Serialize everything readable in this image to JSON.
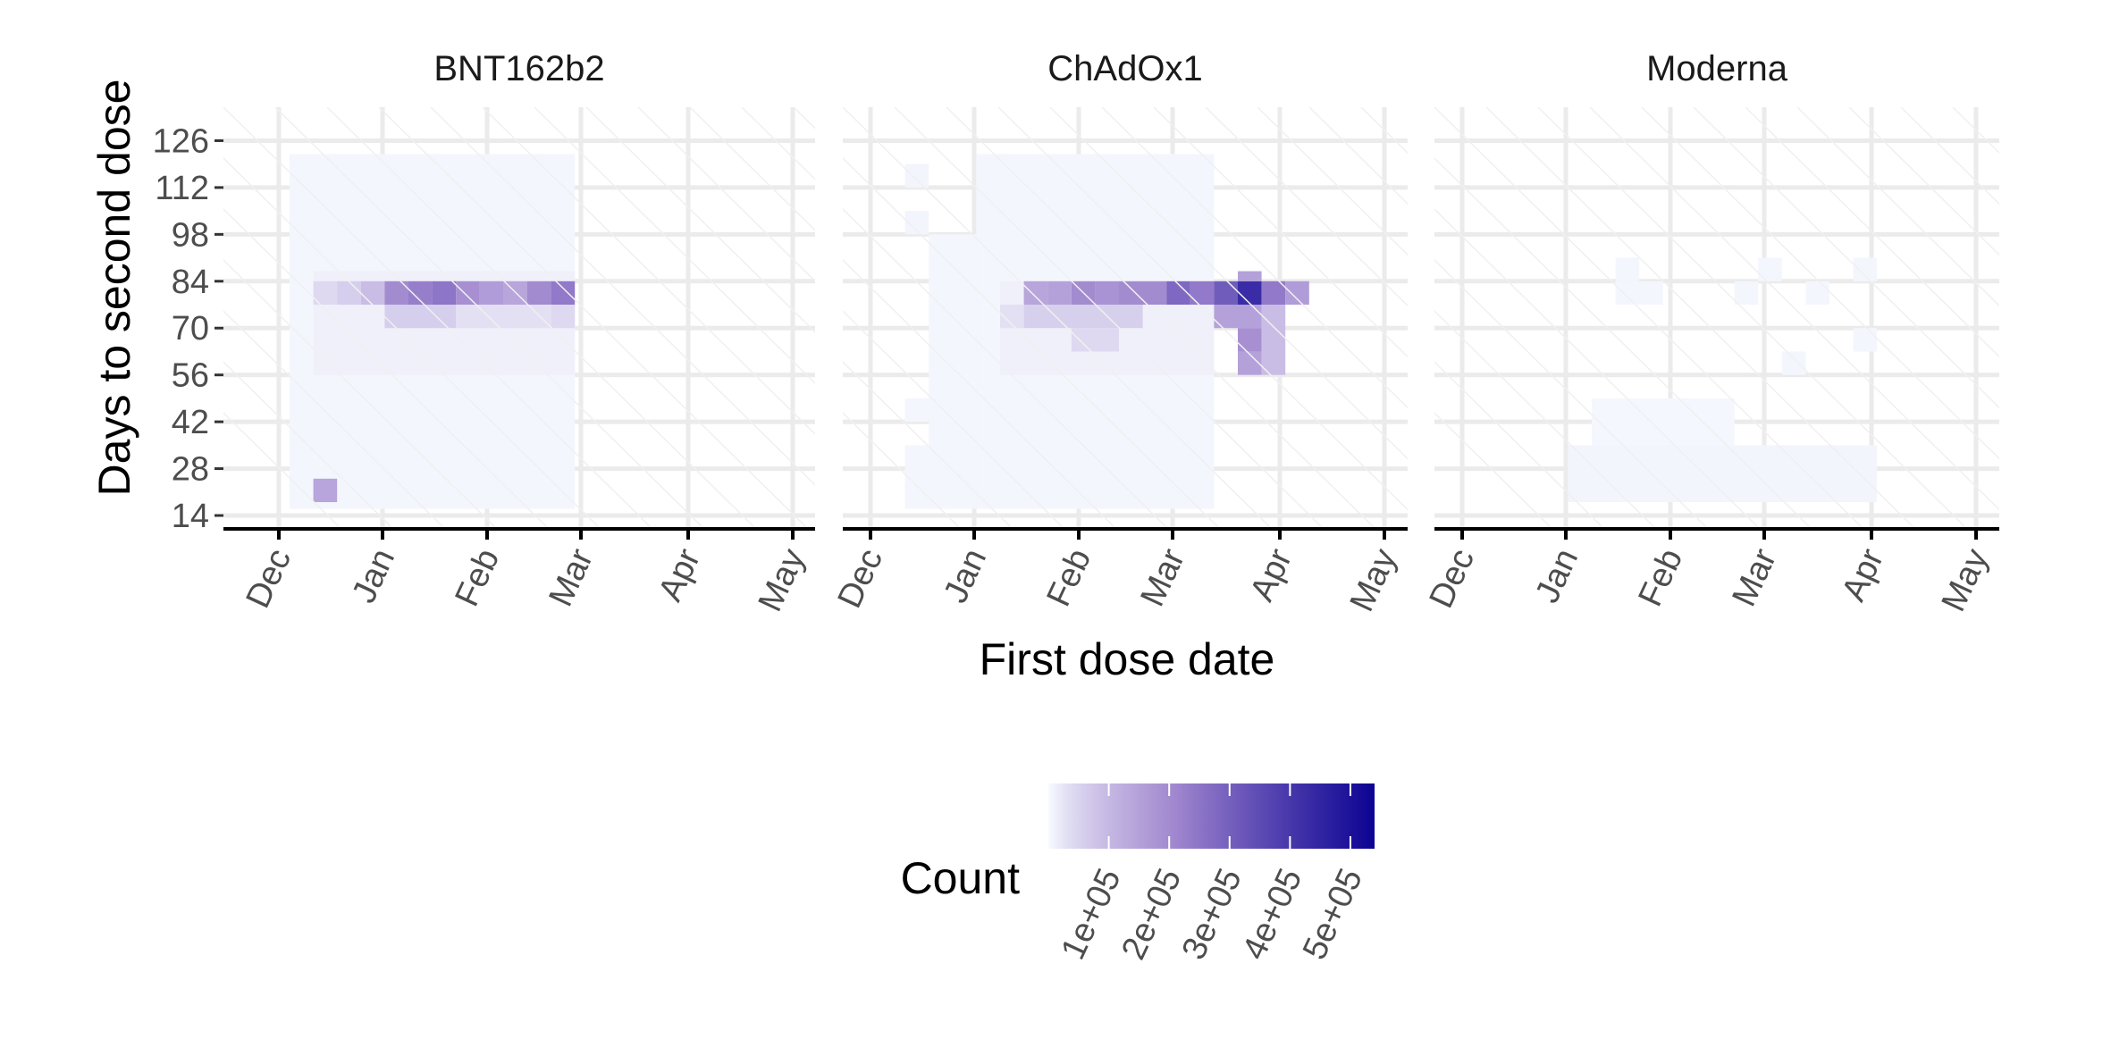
{
  "chart_data": {
    "type": "heatmap",
    "facets": [
      "BNT162b2",
      "ChAdOx1",
      "Moderna"
    ],
    "xlabel": "First dose date",
    "ylabel": "Days to second dose",
    "x_ticks": [
      "Dec",
      "Jan",
      "Feb",
      "Mar",
      "Apr",
      "May"
    ],
    "y_ticks": [
      14,
      28,
      42,
      56,
      70,
      84,
      98,
      112,
      126
    ],
    "ylim": [
      10,
      136
    ],
    "x_unit": "week bins starting 1 Dec",
    "legend": {
      "title": "Count",
      "ticks": [
        "1e+05",
        "2e+05",
        "3e+05",
        "4e+05",
        "5e+05"
      ],
      "tick_values": [
        100000,
        200000,
        300000,
        400000,
        500000
      ],
      "max": 540000,
      "placement": "bottom",
      "colors": [
        "#f7fbff",
        "#9f85ce",
        "#0c0393"
      ]
    },
    "grid": true,
    "tiles": {
      "BNT162b2": [
        {
          "c0": 0,
          "c1": 12,
          "r0": 16,
          "r1": 122,
          "value": 3000
        },
        {
          "c0": 1,
          "c1": 12,
          "r0": 56,
          "r1": 87,
          "value": 9000
        },
        {
          "c0": 1,
          "c1": 2,
          "r0": 77,
          "r1": 84,
          "value": 40000
        },
        {
          "c0": 2,
          "c1": 3,
          "r0": 77,
          "r1": 84,
          "value": 60000
        },
        {
          "c0": 3,
          "c1": 4,
          "r0": 77,
          "r1": 84,
          "value": 90000
        },
        {
          "c0": 4,
          "c1": 5,
          "r0": 77,
          "r1": 84,
          "value": 200000
        },
        {
          "c0": 5,
          "c1": 6,
          "r0": 77,
          "r1": 84,
          "value": 230000
        },
        {
          "c0": 6,
          "c1": 7,
          "r0": 77,
          "r1": 84,
          "value": 250000
        },
        {
          "c0": 7,
          "c1": 8,
          "r0": 77,
          "r1": 84,
          "value": 190000
        },
        {
          "c0": 8,
          "c1": 9,
          "r0": 77,
          "r1": 84,
          "value": 160000
        },
        {
          "c0": 9,
          "c1": 10,
          "r0": 77,
          "r1": 84,
          "value": 140000
        },
        {
          "c0": 10,
          "c1": 11,
          "r0": 77,
          "r1": 84,
          "value": 200000
        },
        {
          "c0": 11,
          "c1": 12,
          "r0": 77,
          "r1": 84,
          "value": 240000
        },
        {
          "c0": 4,
          "c1": 7,
          "r0": 70,
          "r1": 77,
          "value": 60000
        },
        {
          "c0": 7,
          "c1": 11,
          "r0": 70,
          "r1": 77,
          "value": 30000
        },
        {
          "c0": 11,
          "c1": 12,
          "r0": 70,
          "r1": 77,
          "value": 40000
        },
        {
          "c0": 1,
          "c1": 2,
          "r0": 18,
          "r1": 25,
          "value": 140000
        }
      ],
      "ChAdOx1": [
        {
          "c0": 1,
          "c1": 2,
          "r0": 112,
          "r1": 119,
          "value": 4000
        },
        {
          "c0": 1,
          "c1": 2,
          "r0": 98,
          "r1": 105,
          "value": 4000
        },
        {
          "c0": 4,
          "c1": 14,
          "r0": 16,
          "r1": 122,
          "value": 3000
        },
        {
          "c0": 2,
          "c1": 4,
          "r0": 16,
          "r1": 98,
          "value": 3000
        },
        {
          "c0": 1,
          "c1": 2,
          "r0": 16,
          "r1": 35,
          "value": 3000
        },
        {
          "c0": 1,
          "c1": 2,
          "r0": 42,
          "r1": 49,
          "value": 3000
        },
        {
          "c0": 5,
          "c1": 14,
          "r0": 56,
          "r1": 84,
          "value": 9000
        },
        {
          "c0": 5,
          "c1": 6,
          "r0": 70,
          "r1": 77,
          "value": 30000
        },
        {
          "c0": 6,
          "c1": 11,
          "r0": 70,
          "r1": 77,
          "value": 55000
        },
        {
          "c0": 6,
          "c1": 7,
          "r0": 77,
          "r1": 84,
          "value": 140000
        },
        {
          "c0": 7,
          "c1": 8,
          "r0": 77,
          "r1": 84,
          "value": 150000
        },
        {
          "c0": 8,
          "c1": 9,
          "r0": 77,
          "r1": 84,
          "value": 200000
        },
        {
          "c0": 9,
          "c1": 10,
          "r0": 77,
          "r1": 84,
          "value": 180000
        },
        {
          "c0": 10,
          "c1": 12,
          "r0": 77,
          "r1": 84,
          "value": 200000
        },
        {
          "c0": 12,
          "c1": 13,
          "r0": 77,
          "r1": 84,
          "value": 280000
        },
        {
          "c0": 13,
          "c1": 14,
          "r0": 77,
          "r1": 84,
          "value": 240000
        },
        {
          "c0": 14,
          "c1": 15,
          "r0": 77,
          "r1": 84,
          "value": 310000
        },
        {
          "c0": 15,
          "c1": 16,
          "r0": 77,
          "r1": 84,
          "value": 430000
        },
        {
          "c0": 16,
          "c1": 17,
          "r0": 77,
          "r1": 84,
          "value": 240000
        },
        {
          "c0": 17,
          "c1": 18,
          "r0": 77,
          "r1": 84,
          "value": 160000
        },
        {
          "c0": 15,
          "c1": 16,
          "r0": 84,
          "r1": 87,
          "value": 150000
        },
        {
          "c0": 14,
          "c1": 16,
          "r0": 70,
          "r1": 77,
          "value": 150000
        },
        {
          "c0": 15,
          "c1": 16,
          "r0": 63,
          "r1": 70,
          "value": 190000
        },
        {
          "c0": 15,
          "c1": 16,
          "r0": 56,
          "r1": 63,
          "value": 150000
        },
        {
          "c0": 16,
          "c1": 17,
          "r0": 56,
          "r1": 77,
          "value": 90000
        },
        {
          "c0": 8,
          "c1": 10,
          "r0": 63,
          "r1": 70,
          "value": 40000
        }
      ],
      "Moderna": [
        {
          "c0": 4,
          "c1": 17,
          "r0": 18,
          "r1": 35,
          "value": 4000
        },
        {
          "c0": 5,
          "c1": 11,
          "r0": 35,
          "r1": 49,
          "value": 2500
        },
        {
          "c0": 6,
          "c1": 8,
          "r0": 77,
          "r1": 84,
          "value": 3500
        },
        {
          "c0": 6,
          "c1": 7,
          "r0": 84,
          "r1": 91,
          "value": 3500
        },
        {
          "c0": 11,
          "c1": 12,
          "r0": 77,
          "r1": 84,
          "value": 3500
        },
        {
          "c0": 12,
          "c1": 13,
          "r0": 84,
          "r1": 91,
          "value": 3500
        },
        {
          "c0": 14,
          "c1": 15,
          "r0": 77,
          "r1": 84,
          "value": 3500
        },
        {
          "c0": 16,
          "c1": 17,
          "r0": 84,
          "r1": 91,
          "value": 3500
        },
        {
          "c0": 16,
          "c1": 17,
          "r0": 63,
          "r1": 70,
          "value": 3000
        },
        {
          "c0": 13,
          "c1": 14,
          "r0": 56,
          "r1": 63,
          "value": 3000
        }
      ]
    }
  }
}
